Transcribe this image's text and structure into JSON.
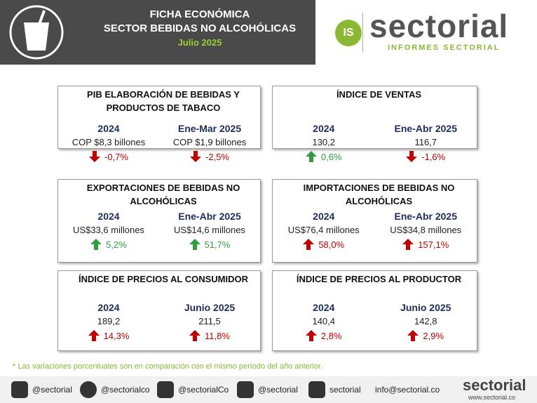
{
  "header": {
    "title_lines": [
      "FICHA ECONÓMICA",
      "SECTOR BEBIDAS NO ALCOHÓLICAS"
    ],
    "date": "Julio 2025"
  },
  "logo": {
    "initials": "IS",
    "name": "sectorial",
    "tagline": "INFORMES SECTORIAL"
  },
  "cards": [
    {
      "title": "PIB ELABORACIÓN DE BEBIDAS Y PRODUCTOS DE TABACO",
      "columns": [
        {
          "period": "2024",
          "value": "COP $8,3 billones",
          "change": "-0,7%"
        },
        {
          "period": "Ene-Mar 2025",
          "value": "COP $1,9 billones",
          "change": "-2,5%"
        }
      ]
    },
    {
      "title": "ÍNDICE DE VENTAS",
      "columns": [
        {
          "period": "2024",
          "value": "130,2",
          "change": "0,6%"
        },
        {
          "period": "Ene-Abr 2025",
          "value": "116,7",
          "change": "-1,6%"
        }
      ]
    },
    {
      "title": "EXPORTACIONES DE BEBIDAS NO ALCOHÓLICAS",
      "columns": [
        {
          "period": "2024",
          "value": "US$33,6 millones",
          "change": "5,2%"
        },
        {
          "period": "Ene-Abr 2025",
          "value": "US$14,6 millones",
          "change": "51,7%"
        }
      ]
    },
    {
      "title": "IMPORTACIONES DE BEBIDAS NO ALCOHÓLICAS",
      "columns": [
        {
          "period": "2024",
          "value": "US$76,4 millones",
          "change": "58,0%"
        },
        {
          "period": "Ene-Abr 2025",
          "value": "US$34,8 millones",
          "change": "157,1%"
        }
      ]
    },
    {
      "title": "ÍNDICE DE PRECIOS AL CONSUMIDOR",
      "columns": [
        {
          "period": "2024",
          "value": "189,2",
          "change": "14,3%"
        },
        {
          "period": "Junio 2025",
          "value": "211,5",
          "change": "11,8%"
        }
      ]
    },
    {
      "title": "ÍNDICE DE PRECIOS AL PRODUCTOR",
      "columns": [
        {
          "period": "2024",
          "value": "140,4",
          "change": "2,8%"
        },
        {
          "period": "Junio 2025",
          "value": "142,8",
          "change": "2,9%"
        }
      ]
    }
  ],
  "footnote": "* Las variaciones porcentuales son en comparación con el mismo período del año anterior.",
  "footer": {
    "social": [
      "@sectorial",
      "@sectorialco",
      "@sectorialCo",
      "@sectorial",
      "sectorial"
    ],
    "email": "info@sectorial.co",
    "brand": "sectorial",
    "website": "www.sectorial.co"
  }
}
